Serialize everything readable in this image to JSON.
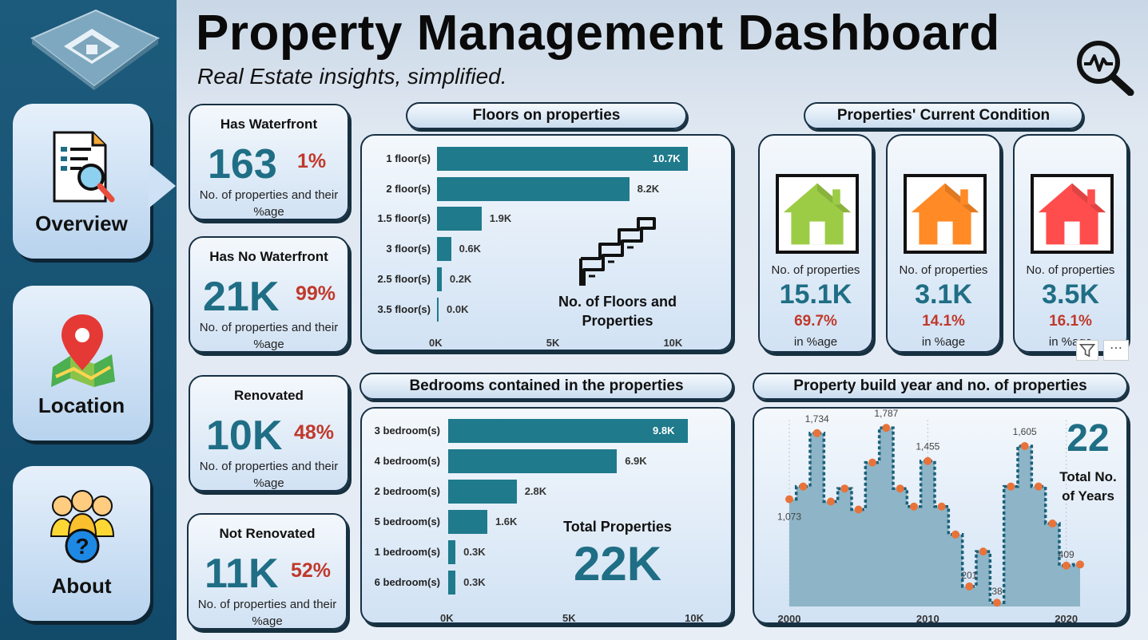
{
  "header": {
    "title": "Property Management Dashboard",
    "subtitle": "Real Estate insights, simplified."
  },
  "nav": [
    {
      "label": "Overview",
      "icon": "document-search-icon",
      "active": true
    },
    {
      "label": "Location",
      "icon": "map-pin-icon",
      "active": false
    },
    {
      "label": "About",
      "icon": "people-question-icon",
      "active": false
    }
  ],
  "kpis": [
    {
      "title": "Has Waterfront",
      "value": "163",
      "pct": "1%",
      "note": "No. of properties and their %age"
    },
    {
      "title": "Has No Waterfront",
      "value": "21K",
      "pct": "99%",
      "note": "No. of properties and their %age"
    },
    {
      "title": "Renovated",
      "value": "10K",
      "pct": "48%",
      "note": "No. of properties and their %age"
    },
    {
      "title": "Not Renovated",
      "value": "11K",
      "pct": "52%",
      "note": "No. of properties and their %age"
    }
  ],
  "floors": {
    "section_title": "Floors on properties",
    "annotation": "No. of Floors and Properties",
    "rows": [
      {
        "label": "1 floor(s)",
        "value": 10700,
        "display": "10.7K"
      },
      {
        "label": "2 floor(s)",
        "value": 8200,
        "display": "8.2K"
      },
      {
        "label": "1.5 floor(s)",
        "value": 1900,
        "display": "1.9K"
      },
      {
        "label": "3 floor(s)",
        "value": 600,
        "display": "0.6K"
      },
      {
        "label": "2.5 floor(s)",
        "value": 200,
        "display": "0.2K"
      },
      {
        "label": "3.5 floor(s)",
        "value": 0,
        "display": "0.0K"
      }
    ],
    "ticks": [
      "0K",
      "5K",
      "10K"
    ],
    "xmax": 10700
  },
  "condition": {
    "section_title": "Properties' Current Condition",
    "cards": [
      {
        "label": "No. of properties",
        "value": "15.1K",
        "pct": "69.7%",
        "note": "in %age",
        "color": "#9ccc45"
      },
      {
        "label": "No. of properties",
        "value": "3.1K",
        "pct": "14.1%",
        "note": "in %age",
        "color": "#ff8a26"
      },
      {
        "label": "No. of properties",
        "value": "3.5K",
        "pct": "16.1%",
        "note": "in %age",
        "color": "#ff4d4d"
      }
    ]
  },
  "bedrooms": {
    "section_title": "Bedrooms contained in the properties",
    "total_label": "Total Properties",
    "total_value": "22K",
    "rows": [
      {
        "label": "3 bedroom(s)",
        "value": 9800,
        "display": "9.8K"
      },
      {
        "label": "4 bedroom(s)",
        "value": 6900,
        "display": "6.9K"
      },
      {
        "label": "2 bedroom(s)",
        "value": 2800,
        "display": "2.8K"
      },
      {
        "label": "5 bedroom(s)",
        "value": 1600,
        "display": "1.6K"
      },
      {
        "label": "1 bedroom(s)",
        "value": 300,
        "display": "0.3K"
      },
      {
        "label": "6 bedroom(s)",
        "value": 300,
        "display": "0.3K"
      }
    ],
    "ticks": [
      "0K",
      "5K",
      "10K"
    ],
    "xmax": 9800
  },
  "buildyear": {
    "section_title": "Property build year and no. of properties",
    "total_value": "22",
    "total_label": "Total No. of Years",
    "x_ticks": [
      "2000",
      "2010",
      "2020"
    ],
    "points": [
      {
        "year": 2000,
        "value": 1073,
        "label": "1,073"
      },
      {
        "year": 2001,
        "value": 1200,
        "label": ""
      },
      {
        "year": 2002,
        "value": 1734,
        "label": "1,734"
      },
      {
        "year": 2003,
        "value": 1050,
        "label": ""
      },
      {
        "year": 2004,
        "value": 1180,
        "label": ""
      },
      {
        "year": 2005,
        "value": 970,
        "label": ""
      },
      {
        "year": 2006,
        "value": 1440,
        "label": ""
      },
      {
        "year": 2007,
        "value": 1787,
        "label": "1,787"
      },
      {
        "year": 2008,
        "value": 1180,
        "label": ""
      },
      {
        "year": 2009,
        "value": 1000,
        "label": ""
      },
      {
        "year": 2010,
        "value": 1455,
        "label": "1,455"
      },
      {
        "year": 2011,
        "value": 1000,
        "label": ""
      },
      {
        "year": 2012,
        "value": 720,
        "label": ""
      },
      {
        "year": 2013,
        "value": 201,
        "label": "201"
      },
      {
        "year": 2014,
        "value": 550,
        "label": ""
      },
      {
        "year": 2015,
        "value": 38,
        "label": "38"
      },
      {
        "year": 2016,
        "value": 1200,
        "label": ""
      },
      {
        "year": 2017,
        "value": 1605,
        "label": "1,605"
      },
      {
        "year": 2018,
        "value": 1200,
        "label": ""
      },
      {
        "year": 2019,
        "value": 830,
        "label": ""
      },
      {
        "year": 2020,
        "value": 409,
        "label": "409"
      },
      {
        "year": 2021,
        "value": 420,
        "label": ""
      }
    ],
    "ymax": 1900
  }
}
